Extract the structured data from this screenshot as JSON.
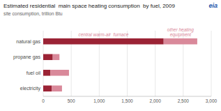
{
  "chart_data": {
    "type": "bar",
    "orientation": "horizontal",
    "stacked": true,
    "title": "Estimated residential  main space heating consumption  by fuel, 2009",
    "subtitle": "site consumption, trillion Btu",
    "categories": [
      "natural gas",
      "propane gas",
      "fuel oil",
      "electricity"
    ],
    "series": [
      {
        "color": "#9b2335",
        "values": [
          2150,
          170,
          130,
          150
        ]
      },
      {
        "color": "#d9899a",
        "values": [
          600,
          120,
          330,
          185
        ]
      }
    ],
    "annotations": [
      "central warm-air  furnace",
      "other heating\nequipment",
      "eia"
    ],
    "xlim": [
      0,
      3000
    ],
    "xticks": [
      0,
      500,
      {
        "value": 1000,
        "label": "1,000"
      },
      {
        "value": 1500,
        "label": "1,500"
      },
      {
        "value": 2000,
        "label": "2,000"
      },
      {
        "value": 2500,
        "label": "2,500"
      },
      {
        "value": 3000,
        "label": "3,000"
      }
    ],
    "grid": true
  }
}
